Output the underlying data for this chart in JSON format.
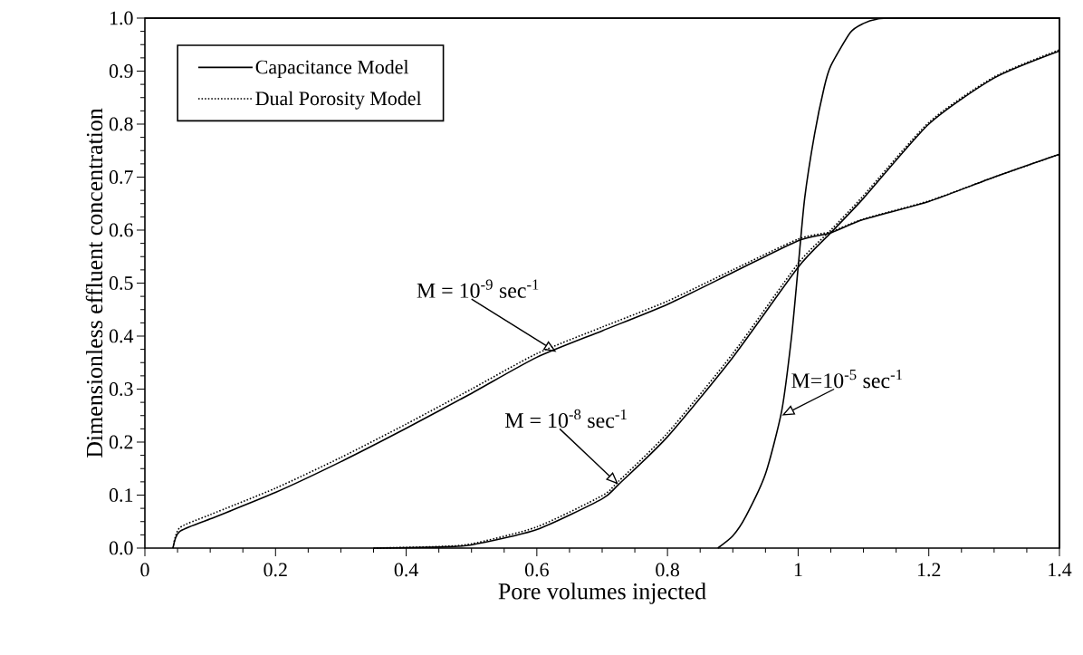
{
  "chart_data": {
    "type": "line",
    "xlabel": "Pore volumes injected",
    "ylabel": "Dimensionless effluent concentration",
    "xlim": [
      0,
      1.4
    ],
    "ylim": [
      0,
      1.0
    ],
    "xticks": [
      0,
      0.2,
      0.4,
      0.6,
      0.8,
      {
        "value": 1.0,
        "label": "1"
      },
      1.2,
      1.4
    ],
    "yticks": [
      {
        "value": 0,
        "label": "0.0"
      },
      0.1,
      0.2,
      0.3,
      0.4,
      0.5,
      0.6,
      0.7,
      0.8,
      0.9,
      {
        "value": 1.0,
        "label": "1.0"
      }
    ],
    "legend": "top left",
    "grid": false,
    "marker": "none",
    "series": [
      {
        "name": "Capacitance Model",
        "color": "#000000",
        "line_style": "solid",
        "x": [
          0.043,
          0.053,
          0.1,
          0.2,
          0.3,
          0.4,
          0.5,
          0.6,
          0.7,
          0.8,
          0.9,
          1.0,
          1.05,
          1.1,
          1.2,
          1.3,
          1.4
        ],
        "values": [
          0,
          0.031,
          0.055,
          0.105,
          0.163,
          0.226,
          0.292,
          0.36,
          0.41,
          0.46,
          0.52,
          0.58,
          0.595,
          0.62,
          0.654,
          0.7,
          0.743
        ]
      },
      {
        "name": "Dual Porosity Model",
        "color": "#000000",
        "line_style": "dotted",
        "x": [
          0.043,
          0.053,
          0.1,
          0.2,
          0.3,
          0.4,
          0.5,
          0.6,
          0.7,
          0.8,
          0.9,
          1.0,
          1.05,
          1.1,
          1.2,
          1.3,
          1.4
        ],
        "values": [
          0,
          0.038,
          0.063,
          0.113,
          0.171,
          0.234,
          0.3,
          0.367,
          0.417,
          0.466,
          0.525,
          0.583,
          0.597,
          0.621,
          0.655,
          0.7,
          0.743
        ]
      },
      {
        "color": "#000000",
        "line_style": "solid",
        "x": [
          0.35,
          0.45,
          0.5,
          0.6,
          0.7,
          0.725,
          0.8,
          0.9,
          1.0,
          1.05,
          1.1,
          1.2,
          1.3,
          1.4
        ],
        "values": [
          0,
          0.002,
          0.006,
          0.035,
          0.093,
          0.12,
          0.21,
          0.36,
          0.53,
          0.595,
          0.66,
          0.8,
          0.887,
          0.938
        ]
      },
      {
        "color": "#000000",
        "line_style": "dotted",
        "x": [
          0.35,
          0.45,
          0.5,
          0.6,
          0.7,
          0.725,
          0.8,
          0.9,
          1.0,
          1.05,
          1.1,
          1.2,
          1.3,
          1.4
        ],
        "values": [
          0,
          0.003,
          0.008,
          0.04,
          0.099,
          0.126,
          0.217,
          0.367,
          0.537,
          0.6,
          0.665,
          0.803,
          0.889,
          0.94
        ]
      },
      {
        "color": "#000000",
        "line_style": "solid",
        "x": [
          0.877,
          0.9,
          0.92,
          0.95,
          0.975,
          0.99,
          1.0,
          1.01,
          1.025,
          1.04,
          1.05,
          1.08,
          1.1,
          1.12,
          1.15,
          1.4
        ],
        "values": [
          0,
          0.023,
          0.06,
          0.14,
          0.26,
          0.4,
          0.53,
          0.66,
          0.78,
          0.87,
          0.91,
          0.973,
          0.99,
          0.998,
          1.0,
          1.0
        ]
      }
    ],
    "annotations": [
      {
        "text": "M = 10$^{-9}$   sec$^{-1}$",
        "x": 0.63,
        "y": 0.37
      },
      {
        "text": "M = 10$^{-8}$  sec$^{-1}$",
        "x": 0.725,
        "y": 0.12
      },
      {
        "text": "M=10$^{-5}$ sec$^{-1}$",
        "x": 0.975,
        "y": 0.25
      }
    ]
  }
}
